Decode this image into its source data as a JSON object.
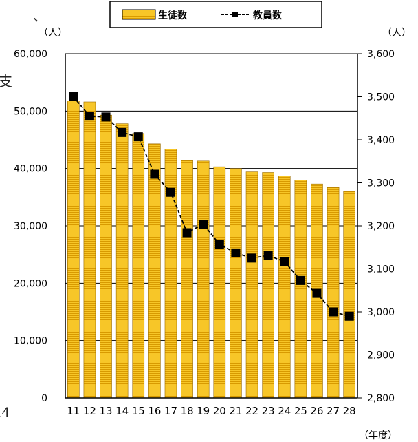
{
  "chart_data": {
    "type": "bar",
    "categories": [
      "11",
      "12",
      "13",
      "14",
      "15",
      "16",
      "17",
      "18",
      "19",
      "20",
      "21",
      "22",
      "23",
      "24",
      "25",
      "26",
      "27",
      "28"
    ],
    "series": [
      {
        "name": "生徒数",
        "axis": "left",
        "kind": "bar",
        "color": "#f2b400",
        "values": [
          51800,
          51600,
          49300,
          47800,
          46100,
          44300,
          43400,
          41400,
          41300,
          40300,
          40000,
          39400,
          39300,
          38700,
          38000,
          37300,
          36700,
          36000
        ]
      },
      {
        "name": "教員数",
        "axis": "right",
        "kind": "line",
        "color": "#000000",
        "values": [
          3500,
          3455,
          3453,
          3417,
          3407,
          3320,
          3278,
          3184,
          3204,
          3157,
          3137,
          3125,
          3131,
          3117,
          3073,
          3043,
          3000,
          2990
        ]
      }
    ],
    "y_left": {
      "label": "（人）",
      "min": 0,
      "max": 60000,
      "ticks": [
        "0",
        "10,000",
        "20,000",
        "30,000",
        "40,000",
        "50,000",
        "60,000"
      ]
    },
    "y_right": {
      "label": "（人）",
      "min": 2800,
      "max": 3600,
      "ticks": [
        "2,800",
        "2,900",
        "3,000",
        "3,100",
        "3,200",
        "3,300",
        "3,400",
        "3,500",
        "3,600"
      ]
    },
    "x_label": "（年度）",
    "legend": {
      "position": "top",
      "items": [
        "生徒数",
        "教員数"
      ]
    },
    "grid": true
  },
  "fragments": {
    "top_left": "、",
    "mid_left": "支",
    "bottom_left": ".4"
  }
}
